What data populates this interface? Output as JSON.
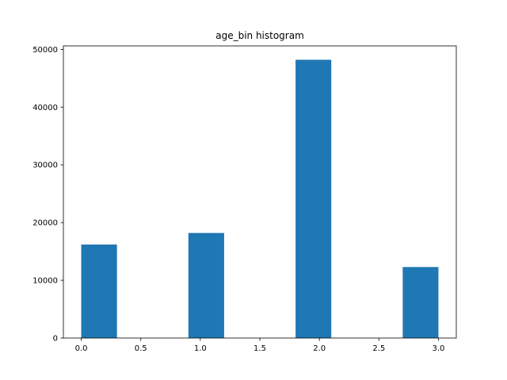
{
  "chart_data": {
    "type": "bar",
    "title": "age_bin histogram",
    "xlabel": "",
    "ylabel": "",
    "xlim": [
      -0.15,
      3.15
    ],
    "ylim": [
      0,
      50600
    ],
    "grid": false,
    "x_ticks": [
      0.0,
      0.5,
      1.0,
      1.5,
      2.0,
      2.5,
      3.0
    ],
    "x_tick_labels": [
      "0.0",
      "0.5",
      "1.0",
      "1.5",
      "2.0",
      "2.5",
      "3.0"
    ],
    "y_ticks": [
      0,
      10000,
      20000,
      30000,
      40000,
      50000
    ],
    "y_tick_labels": [
      "0",
      "10000",
      "20000",
      "30000",
      "40000",
      "50000"
    ],
    "bars": [
      {
        "x0": 0.0,
        "x1": 0.3,
        "value": 16200
      },
      {
        "x0": 0.9,
        "x1": 1.2,
        "value": 18200
      },
      {
        "x0": 1.8,
        "x1": 2.1,
        "value": 48200
      },
      {
        "x0": 2.7,
        "x1": 3.0,
        "value": 12300
      }
    ],
    "bar_color": "#1f77b4"
  }
}
